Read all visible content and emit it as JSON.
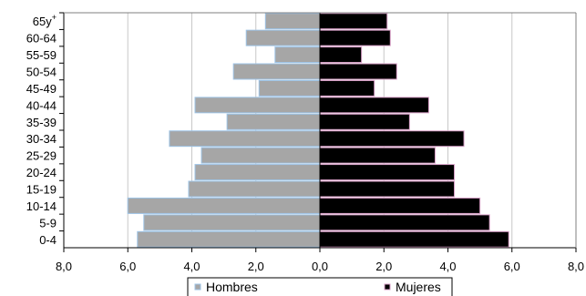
{
  "chart_data": {
    "type": "bar",
    "orientation": "horizontal",
    "layout": "population-pyramid",
    "categories": [
      "65y+",
      "60-64",
      "55-59",
      "50-54",
      "45-49",
      "40-44",
      "35-39",
      "30-34",
      "25-29",
      "20-24",
      "15-19",
      "10-14",
      "5-9",
      "0-4"
    ],
    "category_display": [
      {
        "base": "65y",
        "sup": "+"
      },
      {
        "base": "60-64",
        "sup": ""
      },
      {
        "base": "55-59",
        "sup": ""
      },
      {
        "base": "50-54",
        "sup": ""
      },
      {
        "base": "45-49",
        "sup": ""
      },
      {
        "base": "40-44",
        "sup": ""
      },
      {
        "base": "35-39",
        "sup": ""
      },
      {
        "base": "30-34",
        "sup": ""
      },
      {
        "base": "25-29",
        "sup": ""
      },
      {
        "base": "20-24",
        "sup": ""
      },
      {
        "base": "15-19",
        "sup": ""
      },
      {
        "base": "10-14",
        "sup": ""
      },
      {
        "base": "5-9",
        "sup": ""
      },
      {
        "base": "0-4",
        "sup": ""
      }
    ],
    "series": [
      {
        "name": "Hombres",
        "side": "left",
        "color": "#a6a6a6",
        "border": "#9dc3e6",
        "values": [
          1.7,
          2.3,
          1.4,
          2.7,
          1.9,
          3.9,
          2.9,
          4.7,
          3.7,
          3.9,
          4.1,
          6.0,
          5.5,
          5.7
        ]
      },
      {
        "name": "Mujeres",
        "side": "right",
        "color": "#000000",
        "border": "#d9a0c8",
        "values": [
          2.1,
          2.2,
          1.3,
          2.4,
          1.7,
          3.4,
          2.8,
          4.5,
          3.6,
          4.2,
          4.2,
          5.0,
          5.3,
          5.9
        ]
      }
    ],
    "xlim": [
      -8,
      8
    ],
    "xticks": [
      -8,
      -6,
      -4,
      -2,
      0,
      2,
      4,
      6,
      8
    ],
    "xtick_labels": [
      "8,0",
      "6,0",
      "4,0",
      "2,0",
      "0,0",
      "2,0",
      "4,0",
      "6,0",
      "8,0"
    ],
    "grid": "vertical",
    "legend": "bottom-center",
    "colors": {
      "grid": "#c8c8c8",
      "axis": "#000000"
    }
  }
}
